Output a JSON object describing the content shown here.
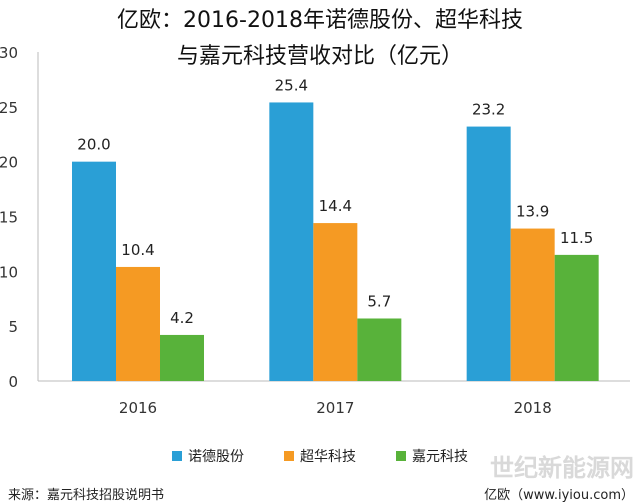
{
  "title_line1": "亿欧：2016-2018年诺德股份、超华科技",
  "title_line2": "与嘉元科技营收对比（亿元）",
  "source": "来源：嘉元科技招股说明书",
  "credit": "亿欧（www.iyiou.com）",
  "watermark": "世纪新能源网",
  "colors": {
    "s1": "#2a9fd6",
    "s2": "#f59a23",
    "s3": "#58b23a",
    "axis": "#bbbbbb",
    "grid": "#e6e6e6"
  },
  "chart_data": {
    "type": "bar",
    "categories": [
      "2016",
      "2017",
      "2018"
    ],
    "series": [
      {
        "name": "诺德股份",
        "values": [
          20.0,
          25.4,
          23.2
        ]
      },
      {
        "name": "超华科技",
        "values": [
          10.4,
          14.4,
          13.9
        ]
      },
      {
        "name": "嘉元科技",
        "values": [
          4.2,
          5.7,
          11.5
        ]
      }
    ],
    "ylim": [
      0,
      30
    ],
    "yticks": [
      0,
      5,
      10,
      15,
      20,
      25,
      30
    ],
    "grid": false,
    "legend_position": "bottom",
    "data_labels": [
      "20.0",
      "10.4",
      "4.2",
      "25.4",
      "14.4",
      "5.7",
      "23.2",
      "13.9",
      "11.5"
    ]
  }
}
